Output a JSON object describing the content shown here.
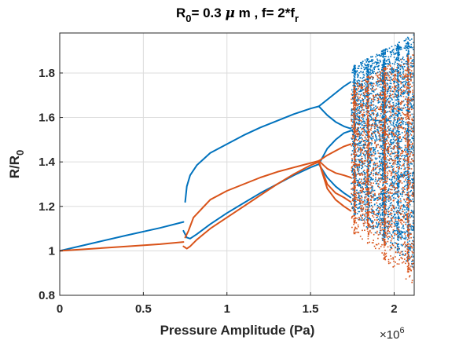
{
  "chart_data": {
    "type": "scatter",
    "title": {
      "part1": "R",
      "sub1": "0",
      "part2": "= 0.3 ",
      "mu": "μ",
      "part3": " m , f= 2*f",
      "sub2": "r"
    },
    "xlabel": "Pressure Amplitude (Pa)",
    "ylabel": {
      "main": "R/R",
      "sub": "0"
    },
    "x_multiplier": {
      "base": "×10",
      "exp": "6"
    },
    "xlim": [
      0,
      2.12
    ],
    "ylim": [
      0.8,
      1.98
    ],
    "xticks": [
      0,
      0.5,
      1,
      1.5,
      2
    ],
    "xtick_labels": [
      "0",
      "0.5",
      "1",
      "1.5",
      "2"
    ],
    "yticks": [
      0.8,
      1,
      1.2,
      1.4,
      1.6,
      1.8
    ],
    "ytick_labels": [
      "0.8",
      "1",
      "1.2",
      "1.4",
      "1.6",
      "1.8"
    ],
    "grid": true,
    "x_units_note": "x values in units of 1e6 Pa",
    "series": [
      {
        "color": "#0072BD",
        "branches": [
          {
            "x": [
              0,
              0.2,
              0.4,
              0.6,
              0.74
            ],
            "y": [
              1.0,
              1.035,
              1.07,
              1.103,
              1.13
            ]
          },
          {
            "x": [
              0.75,
              0.76,
              0.78,
              0.82,
              0.9,
              1.0,
              1.1,
              1.2,
              1.3,
              1.4,
              1.5,
              1.55
            ],
            "y": [
              1.22,
              1.29,
              1.34,
              1.385,
              1.44,
              1.48,
              1.52,
              1.555,
              1.585,
              1.615,
              1.64,
              1.65
            ]
          },
          {
            "x": [
              0.74,
              0.76,
              0.78,
              0.82,
              0.9,
              1.0,
              1.1,
              1.2,
              1.3,
              1.4,
              1.5,
              1.55
            ],
            "y": [
              1.09,
              1.06,
              1.055,
              1.075,
              1.12,
              1.17,
              1.215,
              1.26,
              1.3,
              1.34,
              1.375,
              1.39
            ]
          },
          {
            "x": [
              1.55,
              1.6,
              1.65,
              1.7,
              1.74
            ],
            "y": [
              1.65,
              1.68,
              1.71,
              1.74,
              1.76
            ]
          },
          {
            "x": [
              1.55,
              1.6,
              1.65,
              1.7,
              1.74
            ],
            "y": [
              1.65,
              1.61,
              1.58,
              1.56,
              1.55
            ]
          },
          {
            "x": [
              1.55,
              1.6,
              1.65,
              1.7,
              1.74
            ],
            "y": [
              1.39,
              1.46,
              1.5,
              1.53,
              1.54
            ]
          },
          {
            "x": [
              1.55,
              1.6,
              1.65,
              1.7,
              1.74
            ],
            "y": [
              1.39,
              1.33,
              1.29,
              1.26,
              1.24
            ]
          }
        ],
        "chaos": {
          "x_range": [
            1.74,
            2.12
          ],
          "y_range": [
            0.92,
            1.98
          ],
          "count": 3800,
          "seed": 7,
          "dense_columns": [
            1.76,
            1.84,
            1.93,
            1.94,
            2.02,
            2.08
          ]
        }
      },
      {
        "color": "#D95319",
        "branches": [
          {
            "x": [
              0,
              0.2,
              0.4,
              0.6,
              0.74
            ],
            "y": [
              1.0,
              1.01,
              1.02,
              1.03,
              1.04
            ]
          },
          {
            "x": [
              0.75,
              0.77,
              0.8,
              0.9,
              1.0,
              1.1,
              1.2,
              1.3,
              1.4,
              1.5,
              1.55
            ],
            "y": [
              1.06,
              1.09,
              1.15,
              1.23,
              1.27,
              1.3,
              1.33,
              1.355,
              1.375,
              1.395,
              1.405
            ]
          },
          {
            "x": [
              0.74,
              0.76,
              0.78,
              0.82,
              0.9,
              1.0,
              1.1,
              1.2,
              1.3,
              1.4,
              1.5,
              1.55
            ],
            "y": [
              1.02,
              1.01,
              1.02,
              1.05,
              1.1,
              1.15,
              1.2,
              1.25,
              1.3,
              1.345,
              1.385,
              1.4
            ]
          },
          {
            "x": [
              1.55,
              1.6,
              1.65,
              1.7,
              1.74
            ],
            "y": [
              1.405,
              1.43,
              1.45,
              1.47,
              1.48
            ]
          },
          {
            "x": [
              1.55,
              1.6,
              1.65,
              1.7,
              1.74
            ],
            "y": [
              1.405,
              1.37,
              1.35,
              1.34,
              1.33
            ]
          },
          {
            "x": [
              1.55,
              1.6,
              1.65,
              1.7,
              1.74
            ],
            "y": [
              1.4,
              1.28,
              1.23,
              1.2,
              1.18
            ]
          },
          {
            "x": [
              1.55,
              1.6,
              1.65,
              1.7,
              1.74
            ],
            "y": [
              1.4,
              1.3,
              1.26,
              1.24,
              1.22
            ]
          }
        ],
        "chaos": {
          "x_range": [
            1.74,
            2.12
          ],
          "y_range": [
            0.84,
            1.9
          ],
          "count": 2200,
          "seed": 13,
          "dense_columns": [
            1.76,
            1.84,
            1.94,
            2.08
          ]
        }
      }
    ]
  }
}
